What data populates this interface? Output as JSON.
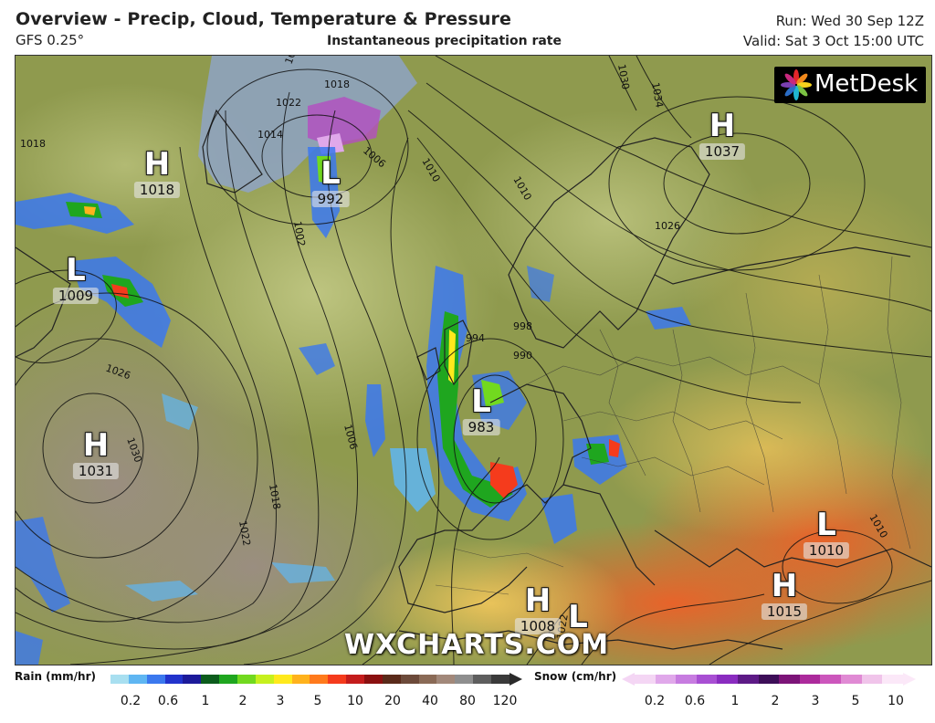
{
  "header": {
    "title": "Overview - Precip, Cloud, Temperature & Pressure",
    "model": "GFS 0.25°",
    "layer": "Instantaneous precipitation rate",
    "run": "Run: Wed 30 Sep 12Z",
    "valid": "Valid: Sat 3 Oct 15:00 UTC"
  },
  "map": {
    "logo_text": "MetDesk",
    "watermark": "WXCHARTS.COM",
    "pressure_systems": [
      {
        "type": "H",
        "value": "1018"
      },
      {
        "type": "L",
        "value": "992"
      },
      {
        "type": "L",
        "value": "1009"
      },
      {
        "type": "H",
        "value": "1031"
      },
      {
        "type": "L",
        "value": "983"
      },
      {
        "type": "H",
        "value": "1037"
      },
      {
        "type": "L",
        "value": "1010"
      },
      {
        "type": "H",
        "value": "1015"
      },
      {
        "type": "H",
        "value": "1008"
      },
      {
        "type": "L",
        "value": ""
      }
    ],
    "isobar_labels": [
      "1026",
      "1022",
      "1018",
      "1014",
      "1010",
      "1006",
      "1002",
      "998",
      "994",
      "990",
      "1034",
      "1030",
      "1026",
      "1030",
      "1022",
      "1018",
      "1026",
      "1010",
      "1006",
      "1018",
      "1010",
      "1022"
    ]
  },
  "legend": {
    "rain": {
      "title": "Rain (mm/hr)",
      "ticks": [
        "0.2",
        "0.6",
        "1",
        "2",
        "3",
        "5",
        "10",
        "20",
        "40",
        "80",
        "120"
      ],
      "colors": [
        "#a8dff0",
        "#5fb6f2",
        "#3b78ee",
        "#2233cc",
        "#1c1a9a",
        "#0c5c1c",
        "#1fa61f",
        "#72d91f",
        "#c6f01e",
        "#ffe91c",
        "#ffb21c",
        "#ff7a1c",
        "#f53b1c",
        "#c41c1c",
        "#8a1010",
        "#5a2a1a",
        "#6c4a3a",
        "#8a6a56",
        "#a2887a",
        "#8e8e8e",
        "#5e5e5e",
        "#3a3a3a"
      ]
    },
    "snow": {
      "title": "Snow (cm/hr)",
      "ticks": [
        "0.2",
        "0.6",
        "1",
        "2",
        "3",
        "5",
        "10"
      ],
      "colors": [
        "#f4d6f4",
        "#e0a8ea",
        "#c77ce0",
        "#a84fd3",
        "#8a2cc0",
        "#5d1a86",
        "#3d0e58",
        "#7c1478",
        "#ac2a9c",
        "#cc56bc",
        "#e08ad4",
        "#f0c4ea",
        "#fbe8f8"
      ]
    }
  }
}
